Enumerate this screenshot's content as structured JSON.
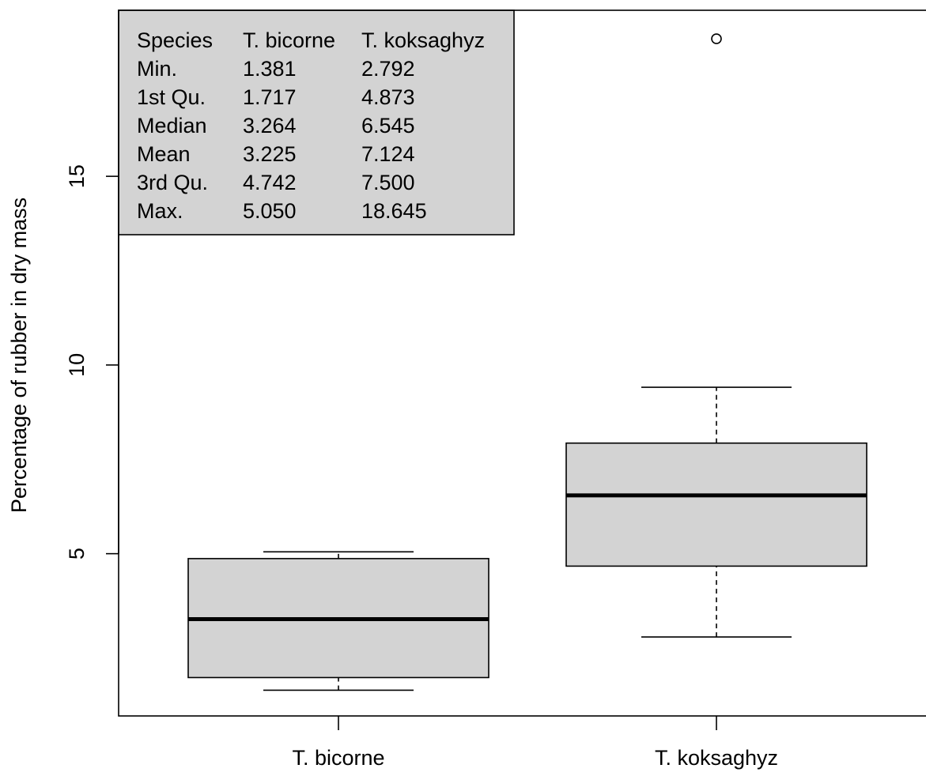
{
  "chart_data": {
    "type": "box",
    "title": "",
    "xlabel": "",
    "ylabel": "Percentage of rubber in dry mass",
    "ylim": [
      0.7,
      19.4
    ],
    "y_ticks": [
      5,
      10,
      15
    ],
    "y_tick_labels": [
      "5",
      "10",
      "15"
    ],
    "categories": [
      "T. bicorne",
      "T. koksaghyz"
    ],
    "grid": false,
    "box_fill": "#d3d3d3",
    "line_color": "#000000",
    "boxes": [
      {
        "category": "T. bicorne",
        "whisker_low": 1.381,
        "q1": 1.717,
        "median": 3.264,
        "q3": 4.87,
        "whisker_high": 5.05,
        "outliers": []
      },
      {
        "category": "T. koksaghyz",
        "whisker_low": 2.792,
        "q1": 4.67,
        "median": 6.545,
        "q3": 7.93,
        "whisker_high": 9.41,
        "outliers": [
          18.645
        ]
      }
    ],
    "summary_table": {
      "placement": "top-left",
      "background": "#d3d3d3",
      "header": [
        "Species",
        "T. bicorne",
        "T. koksaghyz"
      ],
      "rows": [
        [
          "Min.",
          "1.381",
          "2.792"
        ],
        [
          "1st Qu.",
          "1.717",
          "4.873"
        ],
        [
          "Median",
          "3.264",
          "6.545"
        ],
        [
          "Mean",
          "3.225",
          "7.124"
        ],
        [
          "3rd Qu.",
          "4.742",
          "7.500"
        ],
        [
          "Max.",
          "5.050",
          "18.645"
        ]
      ]
    }
  }
}
